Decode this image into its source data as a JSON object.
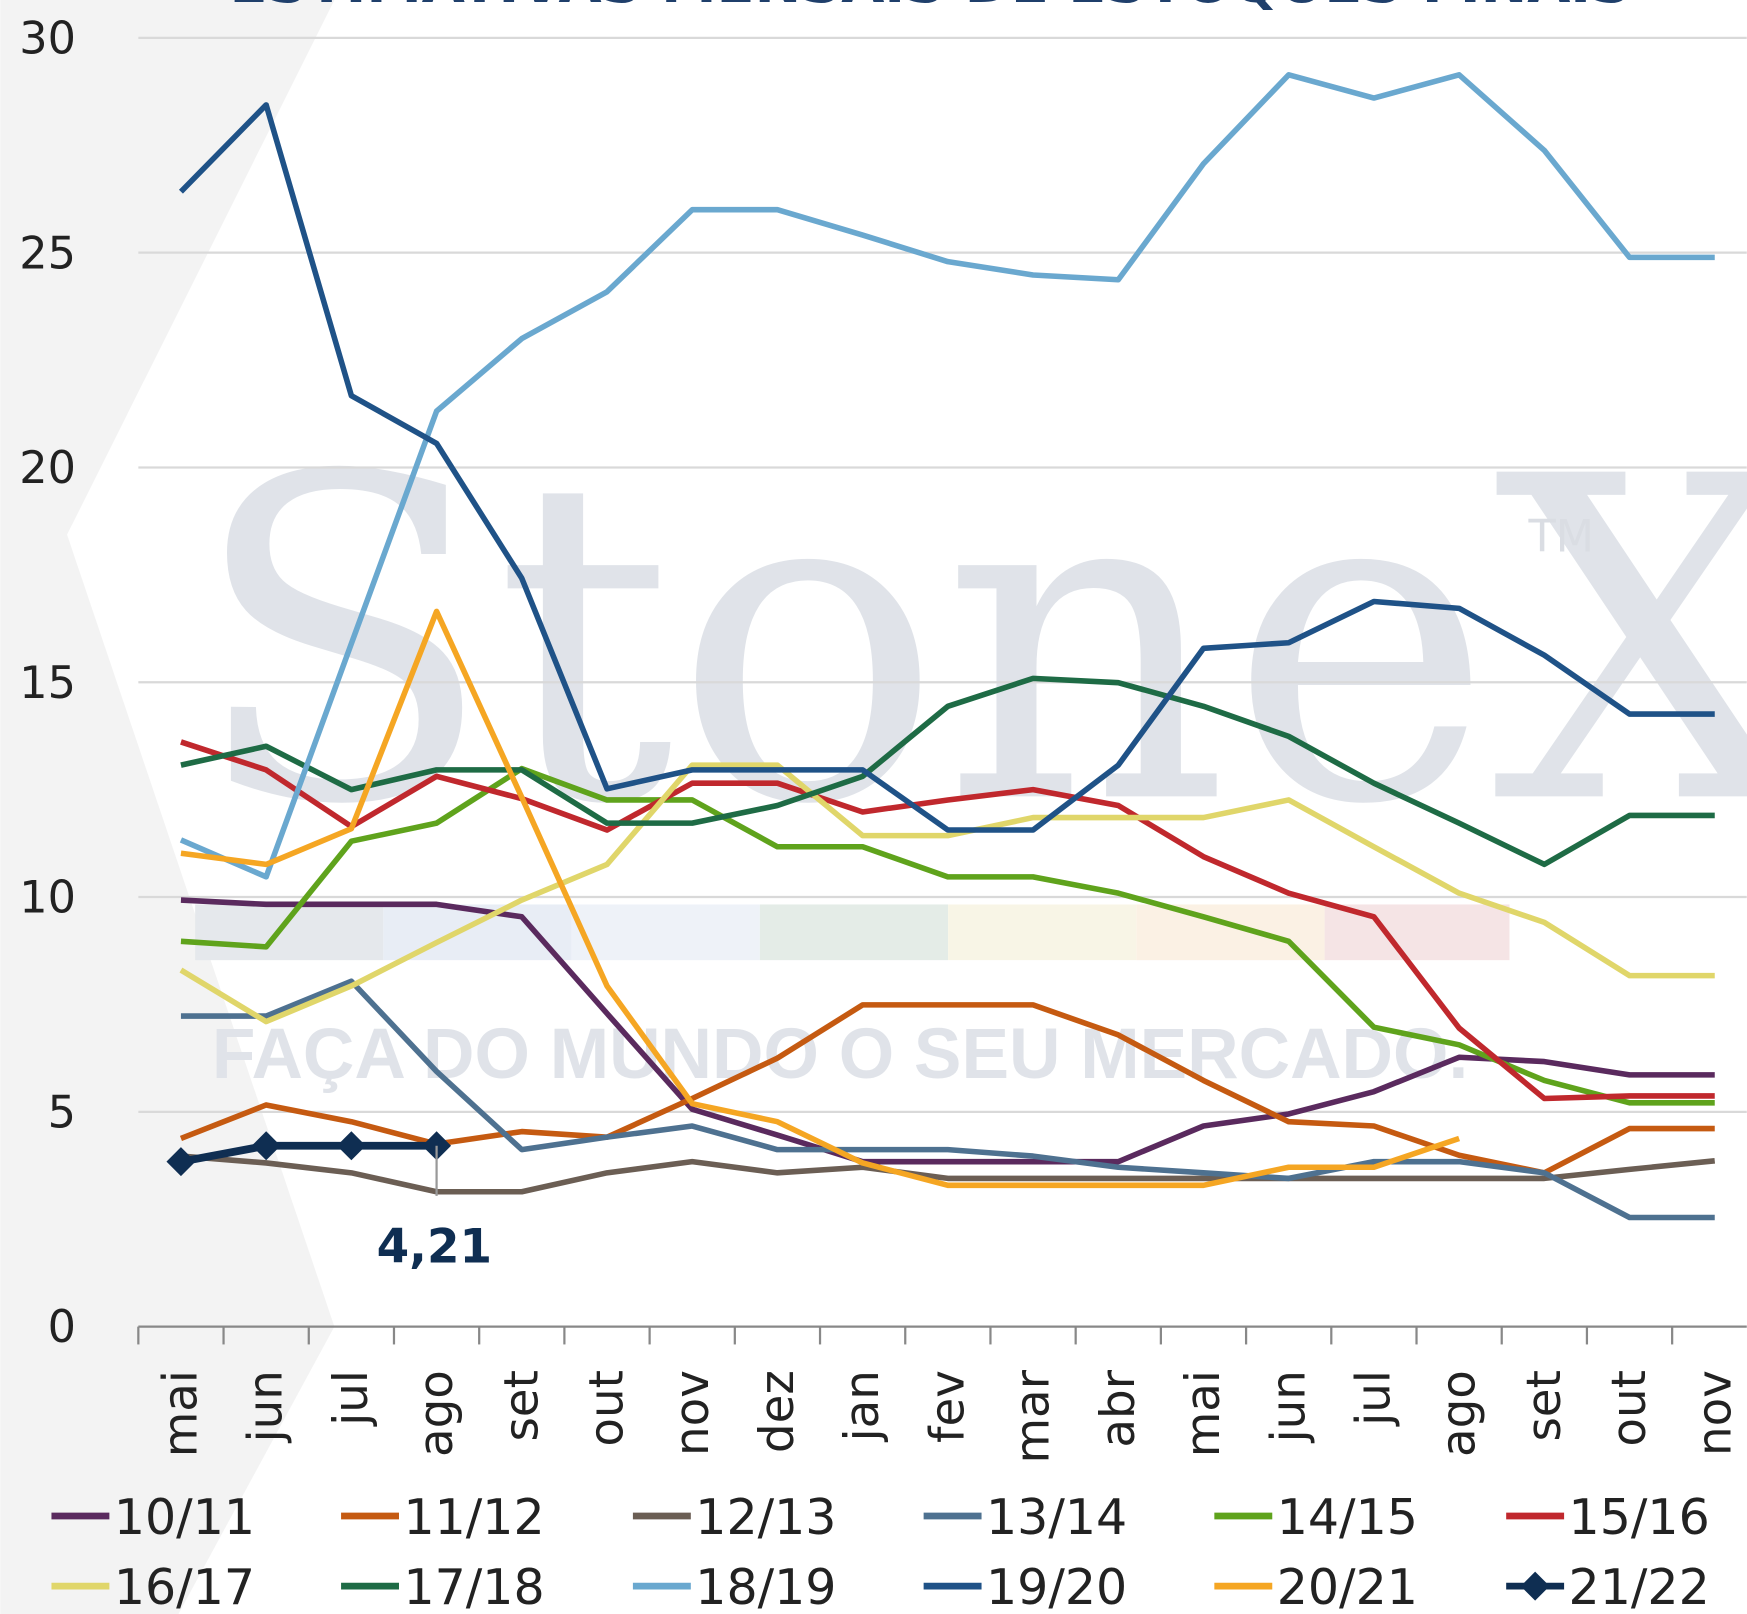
{
  "chart_data": {
    "type": "line",
    "title": "ESTIMATIVAS MENSAIS DE ESTOQUES FINAIS",
    "watermark": {
      "brand": "StoneX",
      "mark": "TM",
      "tagline": "FAÇA DO MUNDO O SEU MERCADO."
    },
    "categories": [
      "mai",
      "jun",
      "jul",
      "ago",
      "set",
      "out",
      "nov",
      "dez",
      "jan",
      "fev",
      "mar",
      "abr",
      "mai",
      "jun",
      "jul",
      "ago",
      "set",
      "out",
      "nov"
    ],
    "ylim": [
      0,
      30
    ],
    "yticks": [
      0,
      5,
      10,
      15,
      20,
      25,
      30
    ],
    "grid": true,
    "legend": "bottom",
    "series": [
      {
        "name": "10/11",
        "color": "#5a2a5e",
        "values": [
          9.93,
          9.83,
          9.83,
          9.83,
          9.54,
          7.29,
          5.06,
          4.46,
          3.84,
          3.84,
          3.84,
          3.84,
          4.67,
          4.95,
          5.47,
          6.27,
          6.17,
          5.86,
          5.86
        ]
      },
      {
        "name": "11/12",
        "color": "#c55a11",
        "values": [
          4.38,
          5.16,
          4.77,
          4.25,
          4.54,
          4.41,
          5.31,
          6.25,
          7.49,
          7.49,
          7.49,
          6.79,
          5.73,
          4.77,
          4.67,
          3.99,
          3.58,
          4.61,
          4.61
        ]
      },
      {
        "name": "12/13",
        "color": "#6b5e54",
        "values": [
          3.97,
          3.81,
          3.58,
          3.14,
          3.14,
          3.58,
          3.84,
          3.58,
          3.71,
          3.45,
          3.45,
          3.45,
          3.45,
          3.45,
          3.45,
          3.45,
          3.45,
          3.66,
          3.86
        ]
      },
      {
        "name": "13/14",
        "color": "#4e7190",
        "values": [
          7.23,
          7.23,
          8.04,
          5.94,
          4.12,
          4.41,
          4.67,
          4.12,
          4.12,
          4.12,
          3.97,
          3.71,
          3.58,
          3.45,
          3.84,
          3.84,
          3.58,
          2.54,
          2.54
        ]
      },
      {
        "name": "14/15",
        "color": "#5fa31c",
        "values": [
          8.97,
          8.84,
          11.3,
          11.72,
          12.99,
          12.26,
          12.26,
          11.17,
          11.17,
          10.47,
          10.47,
          10.09,
          9.54,
          8.97,
          6.97,
          6.56,
          5.73,
          5.21,
          5.21
        ]
      },
      {
        "name": "15/16",
        "color": "#c0282d",
        "values": [
          13.61,
          12.96,
          11.64,
          12.81,
          12.29,
          11.56,
          12.65,
          12.65,
          11.98,
          12.26,
          12.5,
          12.13,
          10.94,
          10.09,
          9.54,
          6.95,
          5.31,
          5.37,
          5.37
        ]
      },
      {
        "name": "16/17",
        "color": "#e0d66a",
        "values": [
          8.3,
          7.1,
          7.93,
          8.94,
          9.93,
          10.76,
          13.07,
          13.07,
          11.43,
          11.43,
          11.85,
          11.85,
          11.85,
          12.26,
          11.17,
          10.09,
          9.41,
          8.17,
          8.17
        ]
      },
      {
        "name": "17/18",
        "color": "#1e6b45",
        "values": [
          13.07,
          13.51,
          12.5,
          12.96,
          12.96,
          11.72,
          11.72,
          12.13,
          12.81,
          14.44,
          15.09,
          14.99,
          14.44,
          13.74,
          12.65,
          11.72,
          10.76,
          11.9,
          11.9
        ]
      },
      {
        "name": "18/19",
        "color": "#6aa8cf",
        "values": [
          11.33,
          10.47,
          15.9,
          21.31,
          23.0,
          24.09,
          26.0,
          26.0,
          25.41,
          24.79,
          24.48,
          24.37,
          27.07,
          29.14,
          28.6,
          29.14,
          27.38,
          24.89,
          24.89
        ]
      },
      {
        "name": "19/20",
        "color": "#1f5287",
        "values": [
          26.42,
          28.44,
          21.67,
          20.56,
          17.42,
          12.52,
          12.96,
          12.96,
          12.96,
          11.56,
          11.56,
          13.07,
          15.79,
          15.92,
          16.88,
          16.72,
          15.63,
          14.26,
          14.26
        ]
      },
      {
        "name": "20/21",
        "color": "#f5a623",
        "values": [
          11.02,
          10.76,
          11.59,
          16.65,
          12.32,
          7.93,
          5.19,
          4.77,
          3.81,
          3.29,
          3.29,
          3.29,
          3.29,
          3.71,
          3.71,
          4.38,
          null,
          null,
          null
        ]
      },
      {
        "name": "21/22",
        "color": "#0f2e52",
        "marker": "diamond",
        "values": [
          3.84,
          4.21,
          4.21,
          4.21,
          null,
          null,
          null,
          null,
          null,
          null,
          null,
          null,
          null,
          null,
          null,
          null,
          null,
          null,
          null
        ],
        "value_labels": [
          null,
          null,
          null,
          "4,21",
          null,
          null,
          null,
          null,
          null,
          null,
          null,
          null,
          null,
          null,
          null,
          null,
          null,
          null,
          null
        ]
      }
    ]
  }
}
